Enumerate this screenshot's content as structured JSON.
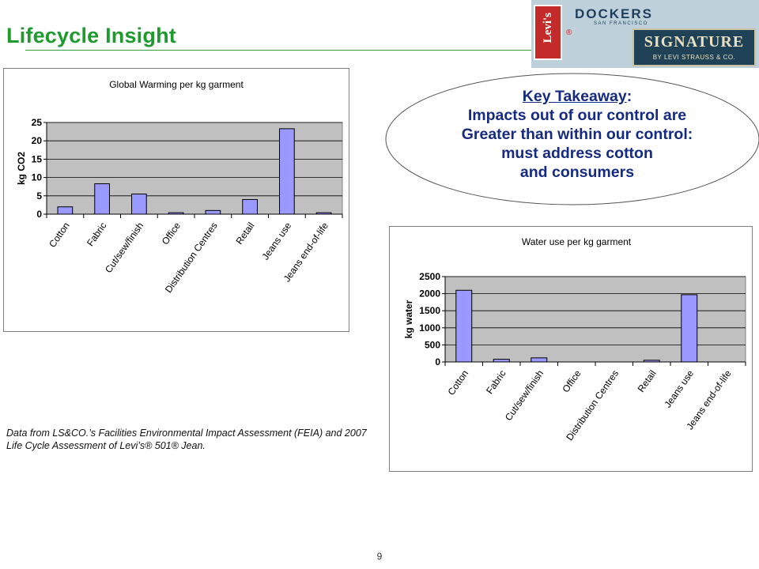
{
  "header": {
    "title": "Lifecycle Insight",
    "logos": {
      "levis_text": "Levi's",
      "reg_mark": "®",
      "dockers": "DOCKERS",
      "dockers_sub": "SAN FRANCISCO",
      "signature": "SIGNATURE",
      "signature_sub": "BY LEVI STRAUSS & CO."
    }
  },
  "takeaway": {
    "heading": "Key Takeaway",
    "colon": ":",
    "lines": [
      "Impacts out of our control are",
      "Greater than within our control:",
      "must address cotton",
      "and consumers"
    ]
  },
  "note": "Data from LS&CO.’s Facilities Environmental Impact Assessment (FEIA) and 2007 Life Cycle Assessment of Levi’s® 501® Jean.",
  "page_number": "9",
  "colors": {
    "title_green": "#1e9a2e",
    "takeaway_blue": "#152a80",
    "bar_fill": "#9999ff",
    "plot_bg": "#c0c0c0"
  },
  "chart_data": [
    {
      "type": "bar",
      "title": "Global Warming per kg garment",
      "ylabel": "kg CO2",
      "xlabel": "",
      "categories": [
        "Cotton",
        "Fabric",
        "Cut/sew/finish",
        "Office",
        "Distribution Centres",
        "Retail",
        "Jeans use",
        "Jeans end-of-life"
      ],
      "values": [
        2,
        8.3,
        5.5,
        0.4,
        1,
        4,
        23.3,
        0.4
      ],
      "ylim": [
        0,
        25
      ],
      "yticks": [
        0,
        5,
        10,
        15,
        20,
        25
      ],
      "grid": true,
      "legend": "none"
    },
    {
      "type": "bar",
      "title": "Water use per kg garment",
      "ylabel": "kg water",
      "xlabel": "",
      "categories": [
        "Cotton",
        "Fabric",
        "Cut/sew/finish",
        "Office",
        "Distribution Centres",
        "Retail",
        "Jeans use",
        "Jeans end-of-life"
      ],
      "values": [
        2100,
        80,
        120,
        0,
        0,
        50,
        1970,
        0
      ],
      "ylim": [
        0,
        2500
      ],
      "yticks": [
        0,
        500,
        1000,
        1500,
        2000,
        2500
      ],
      "grid": true,
      "legend": "none"
    }
  ]
}
